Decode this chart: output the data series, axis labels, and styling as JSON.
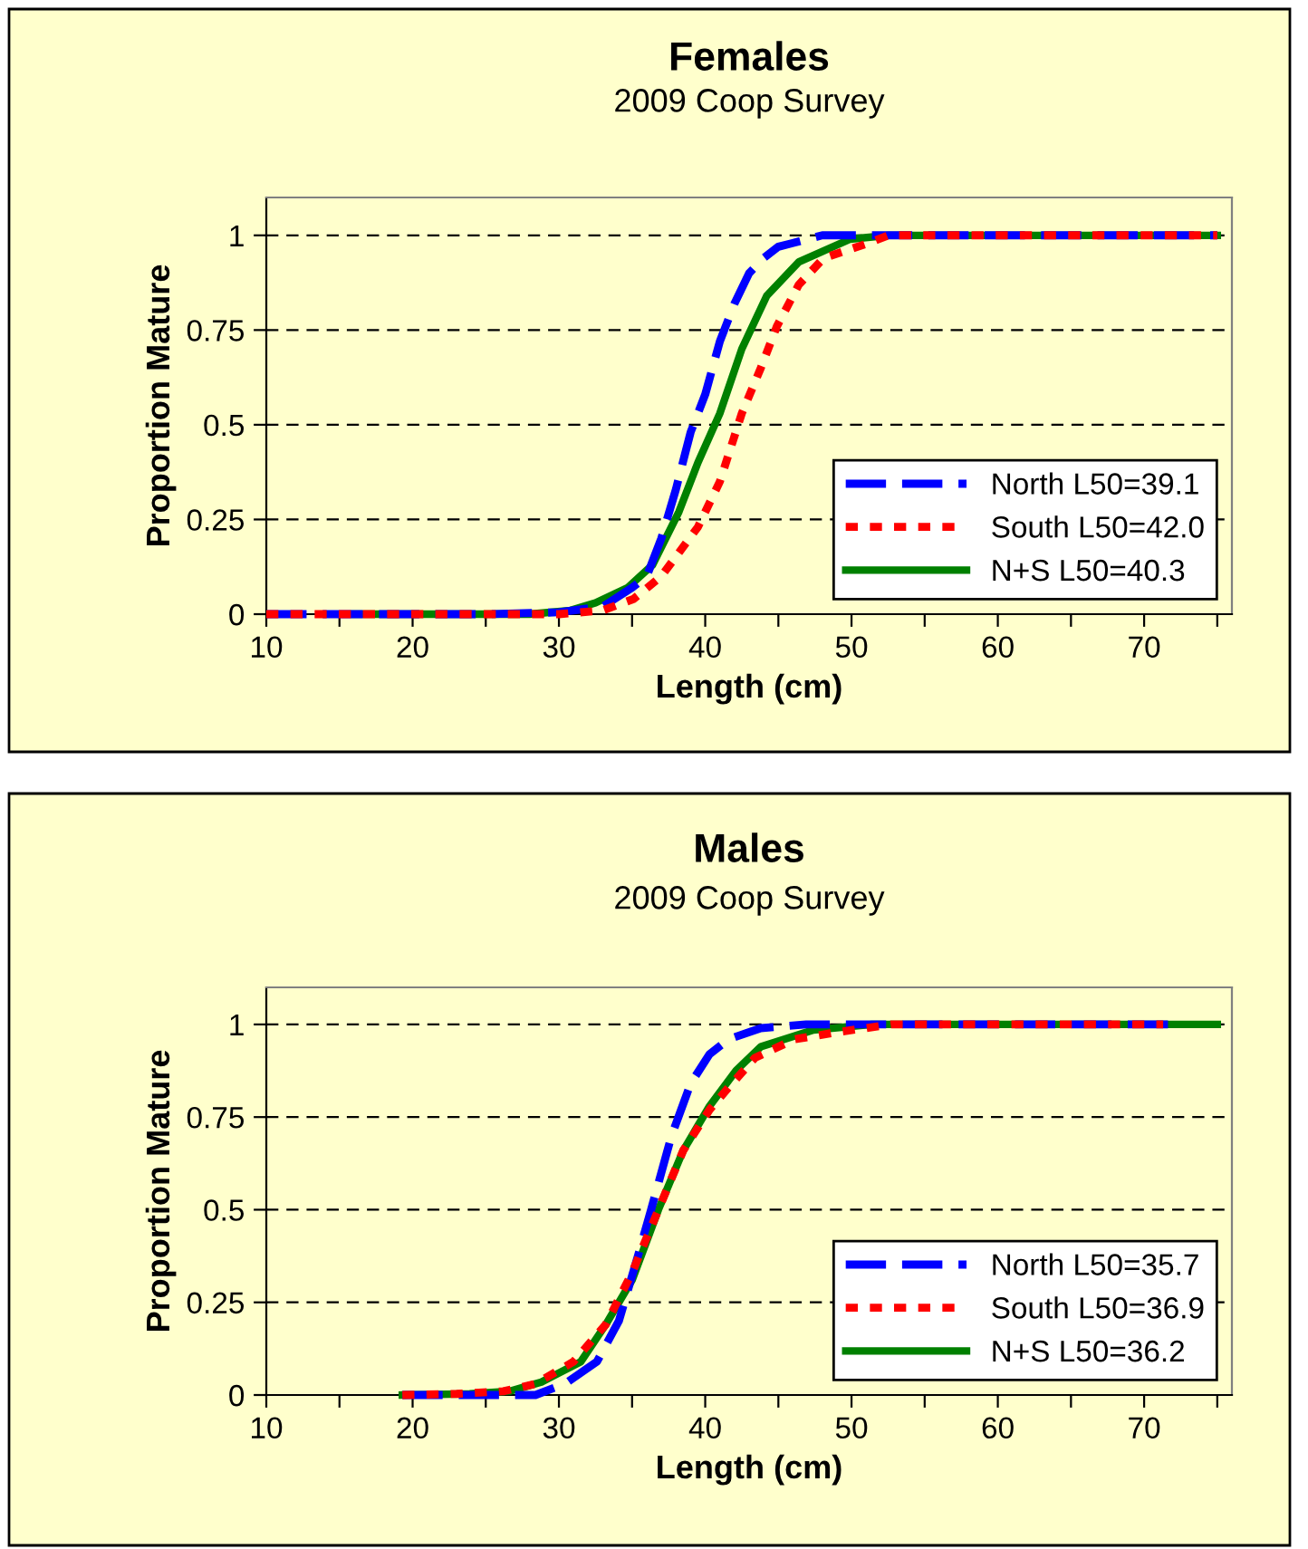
{
  "chart_data": [
    {
      "type": "line",
      "title": "Females",
      "subtitle": "2009 Coop Survey",
      "xlabel": "Length (cm)",
      "ylabel": "Proportion Mature",
      "xlim": [
        10,
        76
      ],
      "xticks": [
        10,
        {
          "value": 15,
          "label": null
        },
        20,
        {
          "value": 25,
          "label": null
        },
        30,
        {
          "value": 35,
          "label": null
        },
        40,
        {
          "value": 45,
          "label": null
        },
        50,
        {
          "value": 55,
          "label": null
        },
        60,
        {
          "value": 65,
          "label": null
        },
        70,
        {
          "value": 75,
          "label": null
        }
      ],
      "ylim": [
        0,
        1.1
      ],
      "yticks": [
        0,
        0.25,
        0.5,
        0.75,
        1
      ],
      "grid": "y",
      "legend": "bottom right",
      "marker": "none",
      "series": [
        {
          "name": "North L50=39.1",
          "color": "#0000ff",
          "line_style": "dashed",
          "x": [
            10,
            14,
            16,
            25,
            30,
            33,
            35,
            36,
            37,
            38,
            39,
            40,
            41,
            42,
            43,
            44,
            45,
            46,
            48,
            75
          ],
          "values": [
            0,
            0,
            0,
            0,
            0.005,
            0.02,
            0.07,
            0.1,
            0.2,
            0.33,
            0.48,
            0.58,
            0.72,
            0.82,
            0.9,
            0.94,
            0.97,
            0.98,
            1,
            1
          ]
        },
        {
          "name": "South L50=42.0",
          "color": "#ff0000",
          "line_style": "dotted",
          "x": [
            10,
            14,
            16,
            25,
            30,
            33,
            35.1,
            37,
            39.5,
            41,
            42.5,
            43.8,
            44.9,
            46.4,
            48.1,
            51.2,
            52.5,
            75
          ],
          "values": [
            0,
            0,
            0,
            0,
            0,
            0.01,
            0.04,
            0.1,
            0.23,
            0.35,
            0.53,
            0.65,
            0.76,
            0.87,
            0.94,
            0.98,
            1,
            1
          ]
        },
        {
          "name": "N+S L50=40.3",
          "color": "#008000",
          "line_style": "solid",
          "x": [
            16,
            25,
            28,
            30.8,
            32.5,
            34.7,
            36.4,
            38.2,
            39.5,
            41,
            42.5,
            44.2,
            46.4,
            49.9,
            52.5,
            75
          ],
          "values": [
            0,
            0,
            0,
            0.01,
            0.03,
            0.07,
            0.13,
            0.27,
            0.4,
            0.53,
            0.7,
            0.84,
            0.93,
            0.99,
            1,
            1
          ]
        }
      ]
    },
    {
      "type": "line",
      "title": "Males",
      "subtitle": "2009 Coop Survey",
      "xlabel": "Length (cm)",
      "ylabel": "Proportion Mature",
      "xlim": [
        10,
        76
      ],
      "xticks": [
        10,
        {
          "value": 15,
          "label": null
        },
        20,
        {
          "value": 25,
          "label": null
        },
        30,
        {
          "value": 35,
          "label": null
        },
        40,
        {
          "value": 45,
          "label": null
        },
        50,
        {
          "value": 55,
          "label": null
        },
        60,
        {
          "value": 65,
          "label": null
        },
        70,
        {
          "value": 75,
          "label": null
        }
      ],
      "ylim": [
        0,
        1.1
      ],
      "yticks": [
        0,
        0.25,
        0.5,
        0.75,
        1
      ],
      "grid": "y",
      "legend": "bottom right",
      "marker": "none",
      "series": [
        {
          "name": "North L50=35.7",
          "color": "#0000ff",
          "line_style": "dashed",
          "x": [
            19.3,
            28.4,
            30.4,
            32.6,
            34.1,
            35.4,
            36.3,
            37.7,
            39,
            40.3,
            41.6,
            43.8,
            46.9,
            50.5,
            71.7
          ],
          "values": [
            0,
            0,
            0.03,
            0.09,
            0.2,
            0.375,
            0.5,
            0.7,
            0.84,
            0.92,
            0.96,
            0.99,
            1,
            1,
            1
          ]
        },
        {
          "name": "South L50=36.9",
          "color": "#ff0000",
          "line_style": "dotted",
          "x": [
            19.3,
            23,
            26.2,
            28.4,
            31,
            33.2,
            35,
            36.8,
            38.5,
            40.3,
            41.6,
            43.4,
            46.1,
            49.2,
            52.7,
            71.3
          ],
          "values": [
            0,
            0.003,
            0.01,
            0.03,
            0.09,
            0.19,
            0.33,
            0.5,
            0.66,
            0.77,
            0.83,
            0.91,
            0.96,
            0.98,
            1,
            1
          ]
        },
        {
          "name": "N+S L50=36.2",
          "color": "#008000",
          "line_style": "solid",
          "x": [
            19.3,
            23.9,
            26.6,
            28.8,
            31.5,
            33.2,
            35,
            36.8,
            38.5,
            40.3,
            42.1,
            43.8,
            47.4,
            51.4,
            75
          ],
          "values": [
            0,
            0.003,
            0.01,
            0.035,
            0.09,
            0.19,
            0.31,
            0.5,
            0.66,
            0.78,
            0.875,
            0.94,
            0.985,
            1,
            1
          ]
        }
      ]
    }
  ]
}
